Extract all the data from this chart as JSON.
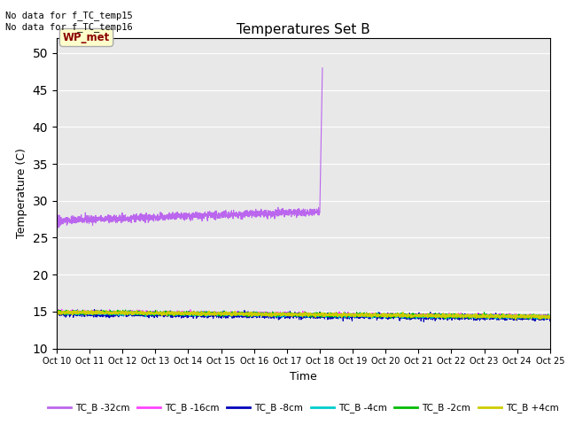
{
  "title": "Temperatures Set B",
  "xlabel": "Time",
  "ylabel": "Temperature (C)",
  "ylim": [
    10,
    52
  ],
  "yticks": [
    10,
    15,
    20,
    25,
    30,
    35,
    40,
    45,
    50
  ],
  "background_color": "#e8e8e8",
  "annotations": [
    "No data for f_TC_temp15",
    "No data for f_TC_temp16"
  ],
  "wp_met_label": "WP_met",
  "wp_met_box_color": "#ffffcc",
  "wp_met_text_color": "#8b0000",
  "x_start": 0,
  "x_end": 360,
  "n_points": 3600,
  "xtick_labels": [
    "Oct 10",
    "Oct 11",
    "Oct 12",
    "Oct 13",
    "Oct 14",
    "Oct 15",
    "Oct 16",
    "Oct 17",
    "Oct 18",
    "Oct 19",
    "Oct 20",
    "Oct 21",
    "Oct 22",
    "Oct 23",
    "Oct 24",
    "Oct 25"
  ],
  "xtick_positions": [
    0,
    24,
    48,
    72,
    96,
    120,
    144,
    168,
    192,
    216,
    240,
    264,
    288,
    312,
    336,
    360
  ],
  "series": [
    {
      "label": "TC_B -32cm",
      "color": "#bb66ee",
      "base": 27.5,
      "noise": 0.25,
      "spike_at": 192,
      "spike_val": 49.0
    },
    {
      "label": "TC_B -16cm",
      "color": "#ff44ff",
      "base": 14.95,
      "noise": 0.12
    },
    {
      "label": "TC_B -8cm",
      "color": "#0000bb",
      "base": 14.75,
      "noise": 0.18
    },
    {
      "label": "TC_B -4cm",
      "color": "#00cccc",
      "base": 14.85,
      "noise": 0.12
    },
    {
      "label": "TC_B -2cm",
      "color": "#00bb00",
      "base": 14.9,
      "noise": 0.12
    },
    {
      "label": "TC_B +4cm",
      "color": "#cccc00",
      "base": 14.9,
      "noise": 0.12
    }
  ]
}
